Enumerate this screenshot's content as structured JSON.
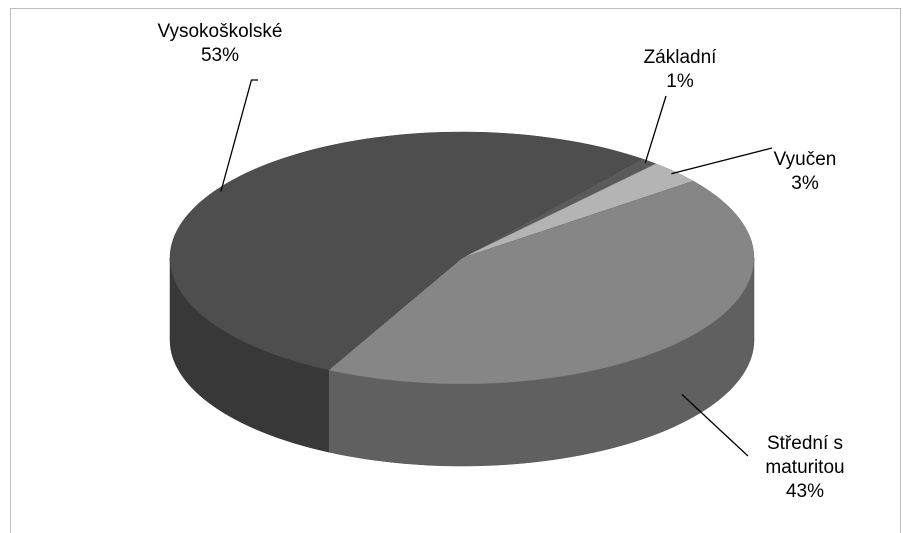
{
  "chart_data": {
    "type": "pie3d",
    "categories": [
      "Základní",
      "Vyučen",
      "Střední s maturitou",
      "Vysokoškolské"
    ],
    "values": [
      1,
      3,
      43,
      53
    ],
    "value_labels": [
      "1%",
      "3%",
      "43%",
      "53%"
    ],
    "colors": [
      "#5a5a5a",
      "#b4b4b4",
      "#868686",
      "#4e4e4e"
    ]
  }
}
